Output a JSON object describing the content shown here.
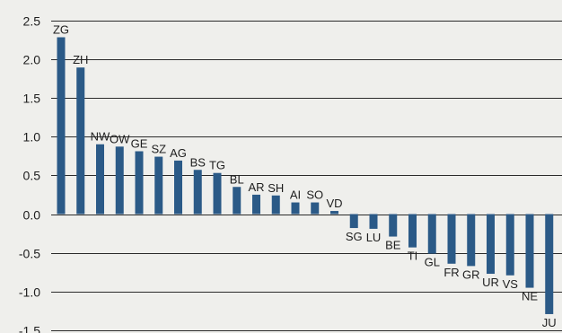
{
  "chart_data": {
    "type": "bar",
    "title": "",
    "xlabel": "",
    "ylabel": "",
    "ylim": [
      -1.5,
      2.5
    ],
    "yticks": [
      2.5,
      2.0,
      1.5,
      1.0,
      0.5,
      0.0,
      -0.5,
      -1.0,
      -1.5
    ],
    "ytick_labels": [
      "2.5",
      "2.0",
      "1.5",
      "1.0",
      "0.5",
      "0.0",
      "-0.5",
      "-1.0",
      "-1.5"
    ],
    "grid": true,
    "categories": [
      "ZG",
      "ZH",
      "NW",
      "OW",
      "GE",
      "SZ",
      "AG",
      "BS",
      "TG",
      "BL",
      "AR",
      "SH",
      "AI",
      "SO",
      "VD",
      "SG",
      "LU",
      "BE",
      "TI",
      "GL",
      "FR",
      "GR",
      "UR",
      "VS",
      "NE",
      "JU"
    ],
    "values": [
      2.28,
      1.89,
      0.9,
      0.87,
      0.81,
      0.74,
      0.69,
      0.57,
      0.53,
      0.35,
      0.25,
      0.24,
      0.15,
      0.15,
      0.04,
      -0.18,
      -0.19,
      -0.29,
      -0.43,
      -0.51,
      -0.64,
      -0.67,
      -0.77,
      -0.79,
      -0.95,
      -1.29
    ],
    "colors": {
      "bar": "#2b5a87",
      "grid": "#2b2b2b",
      "text": "#1e1e1e",
      "background": "#efefec"
    }
  }
}
